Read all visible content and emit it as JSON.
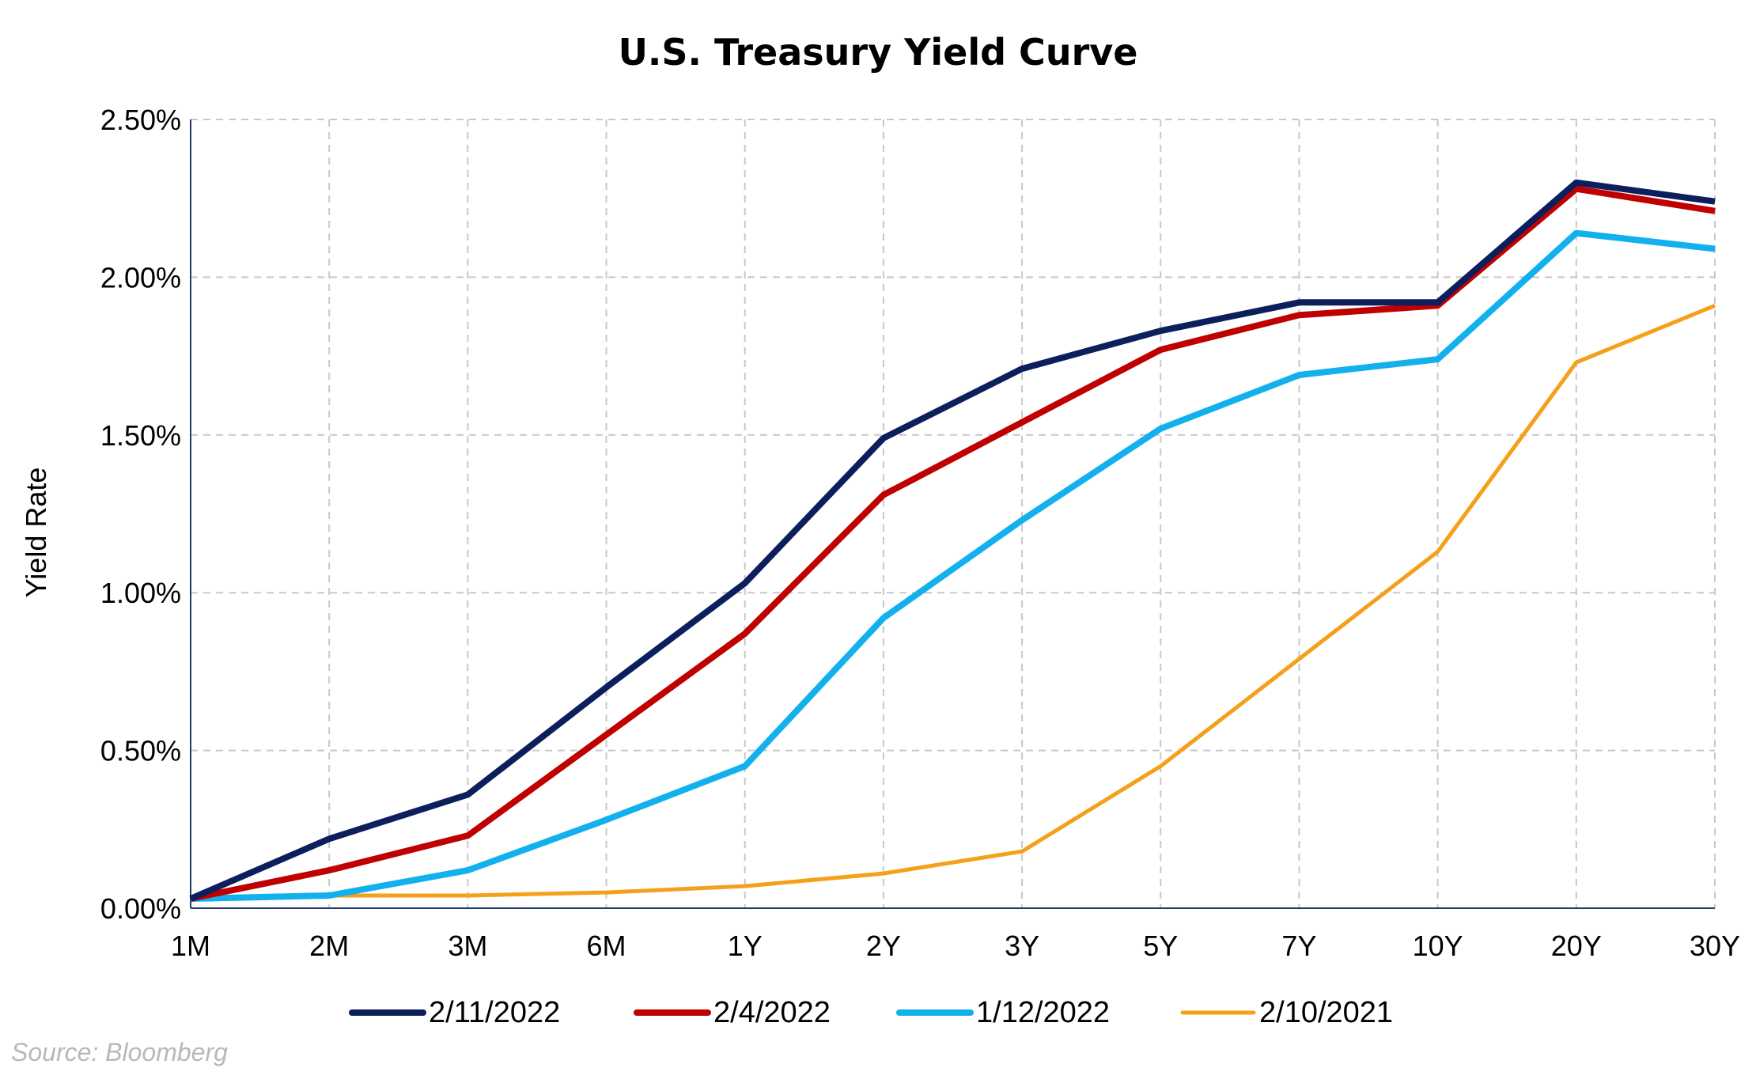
{
  "chart_data": {
    "type": "line",
    "title": "U.S. Treasury Yield Curve",
    "xlabel": "",
    "ylabel": "Yield Rate",
    "categories": [
      "1M",
      "2M",
      "3M",
      "6M",
      "1Y",
      "2Y",
      "3Y",
      "5Y",
      "7Y",
      "10Y",
      "20Y",
      "30Y"
    ],
    "yticks": [
      "0.00%",
      "0.50%",
      "1.00%",
      "1.50%",
      "2.00%",
      "2.50%"
    ],
    "ylim": [
      0,
      2.5
    ],
    "grid": true,
    "legend_position": "bottom",
    "series": [
      {
        "name": "2/11/2022",
        "color": "#0c1f5c",
        "values": [
          0.03,
          0.22,
          0.36,
          0.7,
          1.03,
          1.49,
          1.71,
          1.83,
          1.92,
          1.92,
          2.3,
          2.24
        ]
      },
      {
        "name": "2/4/2022",
        "color": "#c00000",
        "values": [
          0.03,
          0.12,
          0.23,
          0.55,
          0.87,
          1.31,
          1.54,
          1.77,
          1.88,
          1.91,
          2.28,
          2.21
        ]
      },
      {
        "name": "1/12/2022",
        "color": "#13b0ee",
        "values": [
          0.03,
          0.04,
          0.12,
          0.28,
          0.45,
          0.92,
          1.23,
          1.52,
          1.69,
          1.74,
          2.14,
          2.09
        ]
      },
      {
        "name": "2/10/2021",
        "color": "#f5a01a",
        "values": [
          0.03,
          0.04,
          0.04,
          0.05,
          0.07,
          0.11,
          0.18,
          0.45,
          0.79,
          1.13,
          1.73,
          1.91
        ]
      }
    ]
  },
  "source": "Source: Bloomberg"
}
